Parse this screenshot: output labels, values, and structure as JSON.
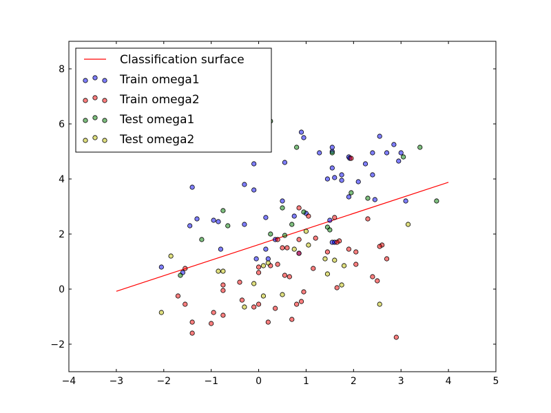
{
  "chart_data": {
    "type": "scatter",
    "title": "",
    "xlabel": "",
    "ylabel": "",
    "xlim": [
      -4,
      5
    ],
    "ylim": [
      -3,
      9
    ],
    "x_ticks": [
      -4,
      -3,
      -2,
      -1,
      0,
      1,
      2,
      3,
      4,
      5
    ],
    "y_ticks": [
      -2,
      0,
      2,
      4,
      6,
      8
    ],
    "x_tick_labels": [
      "−4",
      "−3",
      "−2",
      "−1",
      "0",
      "1",
      "2",
      "3",
      "4",
      "5"
    ],
    "y_tick_labels": [
      "−2",
      "0",
      "2",
      "4",
      "6",
      "8"
    ],
    "grid": false,
    "legend_position": "top-left",
    "line": {
      "name": "Classification surface",
      "color": "#ff0000",
      "x": [
        -3,
        4
      ],
      "y": [
        -0.08,
        3.88
      ]
    },
    "series": [
      {
        "name": "Train omega1",
        "color": "#0000ff",
        "points": [
          [
            0.9,
            5.7
          ],
          [
            0.95,
            5.5
          ],
          [
            2.55,
            5.55
          ],
          [
            2.85,
            5.25
          ],
          [
            3.0,
            4.95
          ],
          [
            2.95,
            4.65
          ],
          [
            1.28,
            4.95
          ],
          [
            1.55,
            5.15
          ],
          [
            1.55,
            5.0
          ],
          [
            1.9,
            4.8
          ],
          [
            1.92,
            4.75
          ],
          [
            2.25,
            4.55
          ],
          [
            2.4,
            4.95
          ],
          [
            2.7,
            4.95
          ],
          [
            1.55,
            4.4
          ],
          [
            1.6,
            4.05
          ],
          [
            1.45,
            4.0
          ],
          [
            1.75,
            3.95
          ],
          [
            1.75,
            4.15
          ],
          [
            2.1,
            3.9
          ],
          [
            2.4,
            4.15
          ],
          [
            -0.1,
            4.55
          ],
          [
            0.55,
            4.6
          ],
          [
            -0.3,
            3.8
          ],
          [
            -0.1,
            3.6
          ],
          [
            -1.4,
            3.7
          ],
          [
            0.5,
            3.2
          ],
          [
            1.9,
            3.35
          ],
          [
            2.45,
            3.25
          ],
          [
            3.1,
            3.2
          ],
          [
            -1.3,
            2.55
          ],
          [
            -1.45,
            2.3
          ],
          [
            -0.95,
            2.5
          ],
          [
            -0.85,
            2.45
          ],
          [
            -0.3,
            2.35
          ],
          [
            0.15,
            2.6
          ],
          [
            0.75,
            2.65
          ],
          [
            1.0,
            2.75
          ],
          [
            1.5,
            2.5
          ],
          [
            0.35,
            1.8
          ],
          [
            1.55,
            1.7
          ],
          [
            1.6,
            1.7
          ],
          [
            -0.8,
            1.45
          ],
          [
            0.15,
            1.45
          ],
          [
            0.85,
            1.3
          ],
          [
            0.2,
            1.1
          ],
          [
            -0.05,
            1.1
          ],
          [
            -1.6,
            0.6
          ],
          [
            -2.05,
            0.8
          ]
        ]
      },
      {
        "name": "Train omega2",
        "color": "#ff0000",
        "points": [
          [
            1.95,
            4.75
          ],
          [
            0.85,
            2.95
          ],
          [
            1.05,
            2.65
          ],
          [
            1.6,
            2.6
          ],
          [
            2.3,
            2.55
          ],
          [
            1.2,
            1.85
          ],
          [
            0.4,
            1.8
          ],
          [
            0.85,
            1.8
          ],
          [
            1.7,
            1.75
          ],
          [
            1.65,
            1.7
          ],
          [
            2.6,
            1.6
          ],
          [
            2.55,
            1.55
          ],
          [
            0.5,
            1.5
          ],
          [
            0.6,
            1.5
          ],
          [
            1.45,
            1.35
          ],
          [
            1.9,
            1.45
          ],
          [
            2.05,
            1.35
          ],
          [
            0.85,
            1.3
          ],
          [
            2.7,
            1.1
          ],
          [
            -1.55,
            0.75
          ],
          [
            0.0,
            0.8
          ],
          [
            0.25,
            0.85
          ],
          [
            0.4,
            0.9
          ],
          [
            1.15,
            0.75
          ],
          [
            2.05,
            0.9
          ],
          [
            0.0,
            0.6
          ],
          [
            0.55,
            0.5
          ],
          [
            0.65,
            0.45
          ],
          [
            2.4,
            0.45
          ],
          [
            2.5,
            0.3
          ],
          [
            -0.4,
            0.25
          ],
          [
            -0.75,
            0.15
          ],
          [
            1.65,
            0.05
          ],
          [
            -0.75,
            -0.05
          ],
          [
            0.95,
            -0.1
          ],
          [
            -1.7,
            -0.25
          ],
          [
            -0.35,
            -0.4
          ],
          [
            0.0,
            -0.55
          ],
          [
            0.9,
            -0.45
          ],
          [
            0.8,
            -0.55
          ],
          [
            -1.55,
            -0.55
          ],
          [
            -0.1,
            -0.65
          ],
          [
            0.35,
            -0.7
          ],
          [
            -0.95,
            -0.85
          ],
          [
            -0.75,
            -0.95
          ],
          [
            -1.4,
            -1.2
          ],
          [
            -1.0,
            -1.25
          ],
          [
            0.7,
            -1.1
          ],
          [
            0.2,
            -1.2
          ],
          [
            -1.4,
            -1.6
          ],
          [
            2.9,
            -1.75
          ]
        ]
      },
      {
        "name": "Test omega1",
        "color": "#008000",
        "points": [
          [
            0.25,
            6.1
          ],
          [
            3.4,
            5.15
          ],
          [
            0.8,
            5.15
          ],
          [
            1.55,
            4.95
          ],
          [
            3.05,
            4.8
          ],
          [
            1.95,
            3.5
          ],
          [
            2.3,
            3.3
          ],
          [
            3.75,
            3.2
          ],
          [
            0.5,
            2.95
          ],
          [
            0.95,
            2.8
          ],
          [
            -0.75,
            2.85
          ],
          [
            0.7,
            2.35
          ],
          [
            -0.65,
            2.3
          ],
          [
            1.45,
            2.25
          ],
          [
            1.5,
            2.15
          ],
          [
            0.25,
            2.0
          ],
          [
            0.55,
            1.95
          ],
          [
            -1.2,
            1.8
          ],
          [
            -1.65,
            0.5
          ]
        ]
      },
      {
        "name": "Test omega2",
        "color": "#bfbf00",
        "points": [
          [
            3.15,
            2.35
          ],
          [
            1.0,
            2.1
          ],
          [
            1.05,
            1.6
          ],
          [
            0.75,
            1.45
          ],
          [
            -1.85,
            1.2
          ],
          [
            1.4,
            1.1
          ],
          [
            1.6,
            1.05
          ],
          [
            0.2,
            0.95
          ],
          [
            0.1,
            0.85
          ],
          [
            1.8,
            0.85
          ],
          [
            -0.85,
            0.65
          ],
          [
            -0.75,
            0.65
          ],
          [
            1.45,
            0.55
          ],
          [
            -0.1,
            0.2
          ],
          [
            1.75,
            0.15
          ],
          [
            0.1,
            -0.25
          ],
          [
            0.5,
            -0.2
          ],
          [
            -0.3,
            -0.65
          ],
          [
            2.55,
            -0.55
          ],
          [
            -2.05,
            -0.85
          ]
        ]
      }
    ]
  }
}
